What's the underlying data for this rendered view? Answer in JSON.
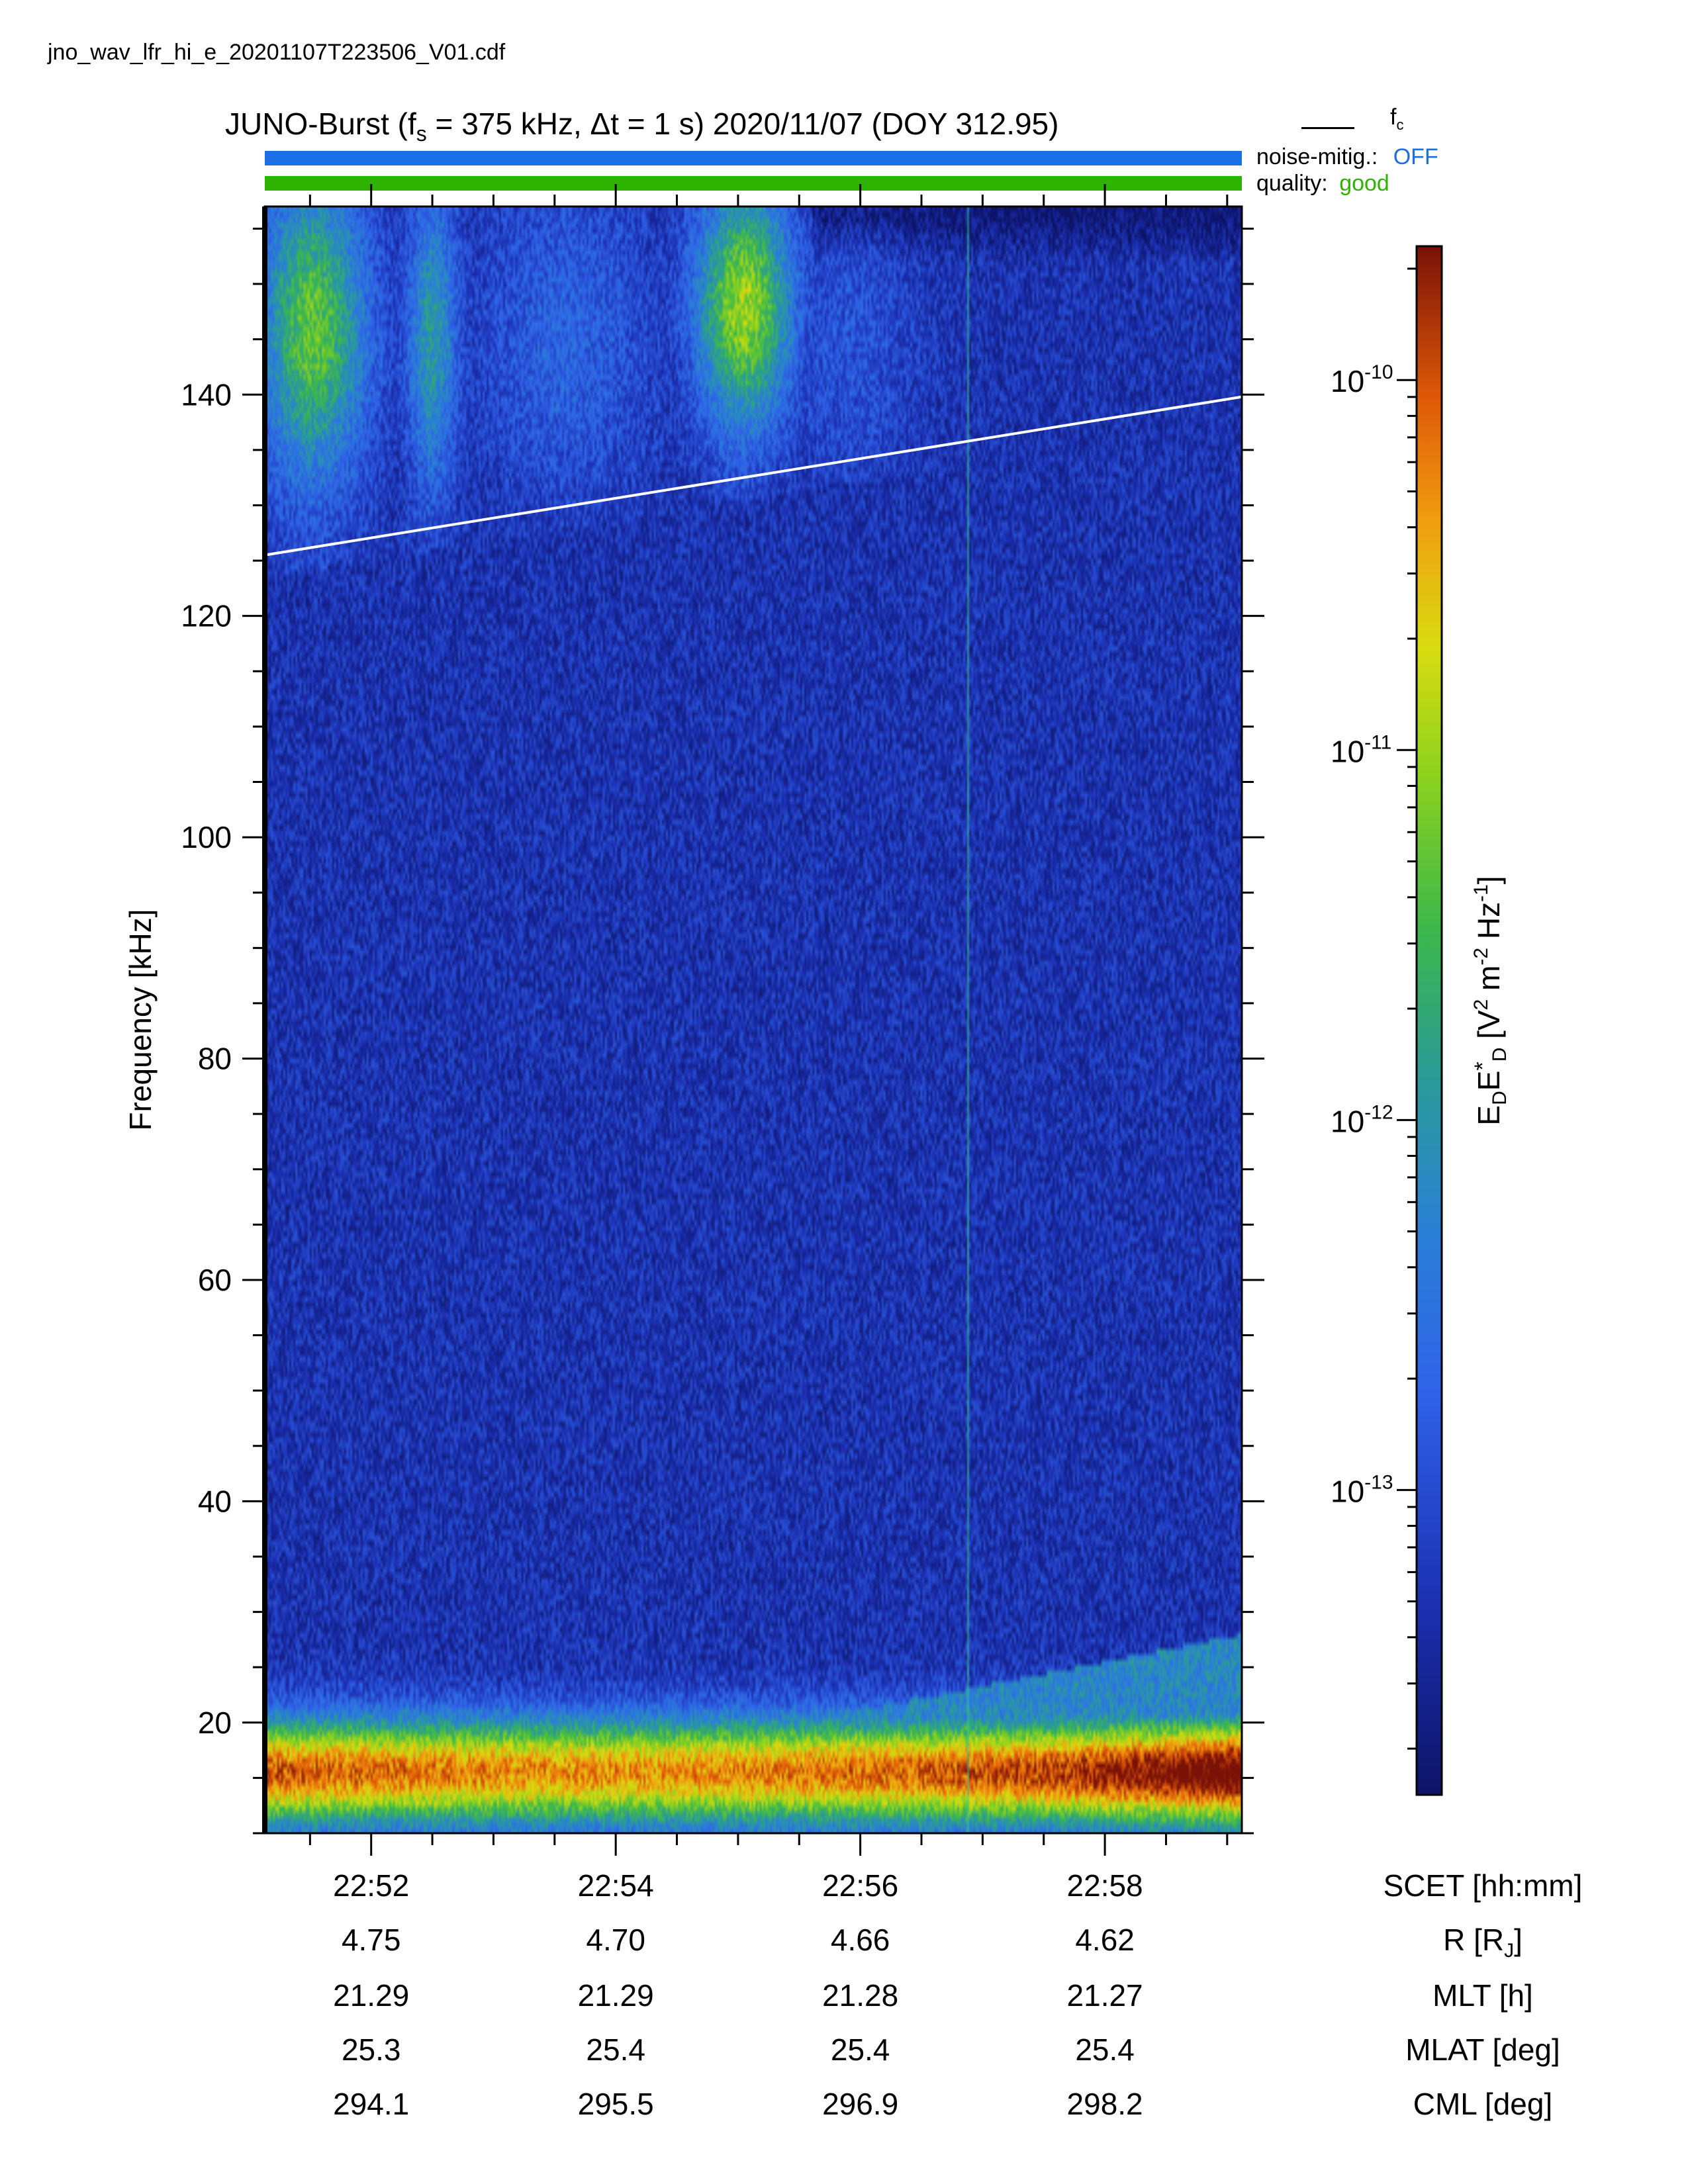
{
  "file": {
    "name": "jno_wav_lfr_hi_e_20201107T223506_V01.cdf"
  },
  "header": {
    "title_pre": "JUNO-Burst (f",
    "title_sub": "s",
    "title_post": " = 375 kHz, Δt = 1 s)  2020/11/07 (DOY 312.95)",
    "noise_label": "noise-mitig.:",
    "noise_value": "OFF",
    "quality_label": "quality:",
    "quality_value": "good",
    "fc_legend": "f",
    "fc_legend_sub": "c"
  },
  "colors": {
    "noise_bar": "#1a6fe6",
    "quality_bar": "#2db300",
    "noise_value": "#1a6fe6",
    "quality_value": "#2db300",
    "fc_line": "#ffffff"
  },
  "chart_data": {
    "type": "heatmap",
    "xlabel": "SCET [hh:mm]",
    "ylabel": "Frequency [kHz]",
    "colorbar_label": "EDE*D [V2 m-2 Hz-1]",
    "colorbar_label_parts": {
      "main": "E",
      "d1": "D",
      "e2": "E",
      "star": "*",
      "d2": "D",
      "unit_pre": " [V",
      "sup1": "2",
      "unit_mid": " m",
      "sup2": "-2",
      "unit_mid2": " Hz",
      "sup3": "-1",
      "unit_post": "]"
    },
    "x_ticks_minutes": [
      1372,
      1374,
      1376,
      1378
    ],
    "x_tick_labels": [
      "22:52",
      "22:54",
      "22:56",
      "22:58"
    ],
    "xlim_minutes": [
      1371.13,
      1379.12
    ],
    "y_ticks": [
      20,
      40,
      60,
      80,
      100,
      120,
      140
    ],
    "y_tick_labels": [
      "20",
      "40",
      "60",
      "80",
      "100",
      "120",
      "140"
    ],
    "ylim": [
      10,
      157
    ],
    "colorscale": "log",
    "clim": [
      1.5e-14,
      2.3e-10
    ],
    "colorbar_ticks": [
      1e-10,
      1e-11,
      1e-12,
      1e-13
    ],
    "colorbar_tick_labels": [
      {
        "base": "10",
        "exp": "-10"
      },
      {
        "base": "10",
        "exp": "-11"
      },
      {
        "base": "10",
        "exp": "-12"
      },
      {
        "base": "10",
        "exp": "-13"
      }
    ],
    "fc_line": {
      "x": [
        1371.13,
        1379.12
      ],
      "y": [
        125.5,
        139.8
      ],
      "name": "fc"
    },
    "features": [
      {
        "name": "background",
        "freq": [
          10,
          157
        ],
        "time": [
          1371.13,
          1379.12
        ],
        "log_level": -13.3
      },
      {
        "name": "low-frequency-band",
        "freq": [
          12,
          19
        ],
        "time": [
          1371.13,
          1379.12
        ],
        "log_level": -10.3
      },
      {
        "name": "hiss-upper-left",
        "freq": [
          128,
          156
        ],
        "time": [
          1371.15,
          1371.9
        ],
        "log_level": -11.3
      },
      {
        "name": "hiss-upper-mid",
        "freq": [
          132,
          156
        ],
        "time": [
          1374.7,
          1375.4
        ],
        "log_level": -11.0
      }
    ],
    "grid": false
  },
  "annotations": {
    "rows": [
      {
        "label": "SCET [hh:mm]",
        "values": [
          "22:52",
          "22:54",
          "22:56",
          "22:58"
        ]
      },
      {
        "label_pre": "R [R",
        "label_sub": "J",
        "label_post": "]",
        "values": [
          "4.75",
          "4.70",
          "4.66",
          "4.62"
        ]
      },
      {
        "label": "MLT [h]",
        "values": [
          "21.29",
          "21.29",
          "21.28",
          "21.27"
        ]
      },
      {
        "label": "MLAT [deg]",
        "values": [
          "25.3",
          "25.4",
          "25.4",
          "25.4"
        ]
      },
      {
        "label": "CML [deg]",
        "values": [
          "294.1",
          "295.5",
          "296.9",
          "298.2"
        ]
      }
    ]
  }
}
